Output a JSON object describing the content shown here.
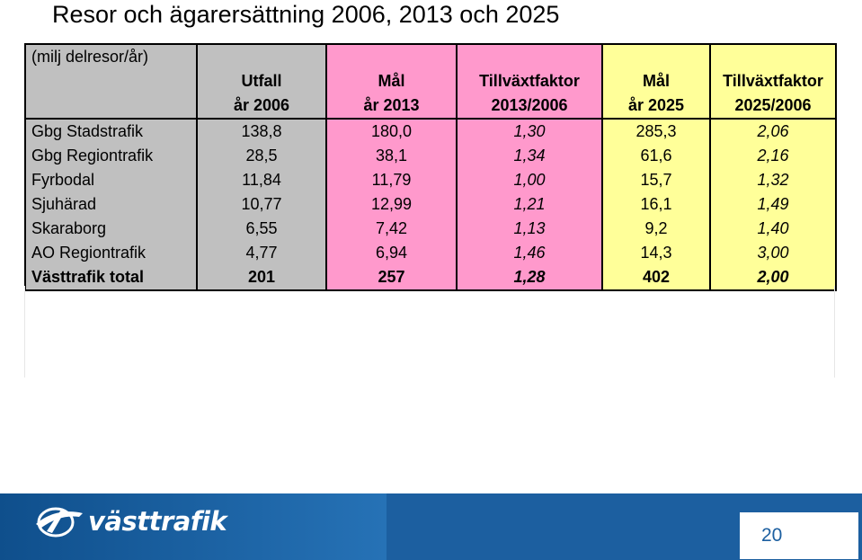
{
  "title": "Resor och ägarersättning 2006, 2013 och 2025",
  "table": {
    "unit_label": "(milj delresor/år)",
    "columns": [
      {
        "line1": "Utfall",
        "line2": "år 2006"
      },
      {
        "line1": "Mål",
        "line2": "år 2013"
      },
      {
        "line1": "Tillväxtfaktor",
        "line2": "2013/2006"
      },
      {
        "line1": "Mål",
        "line2": "år 2025"
      },
      {
        "line1": "Tillväxtfaktor",
        "line2": "2025/2006"
      }
    ],
    "rows": [
      {
        "label": "Gbg Stadstrafik",
        "values": [
          "138,8",
          "180,0",
          "1,30",
          "285,3",
          "2,06"
        ]
      },
      {
        "label": "Gbg Regiontrafik",
        "values": [
          "28,5",
          "38,1",
          "1,34",
          "61,6",
          "2,16"
        ]
      },
      {
        "label": "Fyrbodal",
        "values": [
          "11,84",
          "11,79",
          "1,00",
          "15,7",
          "1,32"
        ]
      },
      {
        "label": "Sjuhärad",
        "values": [
          "10,77",
          "12,99",
          "1,21",
          "16,1",
          "1,49"
        ]
      },
      {
        "label": "Skaraborg",
        "values": [
          "6,55",
          "7,42",
          "1,13",
          "9,2",
          "1,40"
        ]
      },
      {
        "label": "AO Regiontrafik",
        "values": [
          "4,77",
          "6,94",
          "1,46",
          "14,3",
          "3,00"
        ]
      },
      {
        "label": "Västtrafik total",
        "values": [
          "201",
          "257",
          "1,28",
          "402",
          "2,00"
        ]
      }
    ],
    "colors": {
      "label_col": "#c0c0c0",
      "col_2006": "#c0c0c0",
      "col_2013": "#ff99cc",
      "col_2025": "#ffff99"
    }
  },
  "footer": {
    "logo_text": "västtrafik",
    "logo_icon": "vasttrafik-logo-icon",
    "page_number": "20",
    "bar_color": "#1c5fa0"
  }
}
